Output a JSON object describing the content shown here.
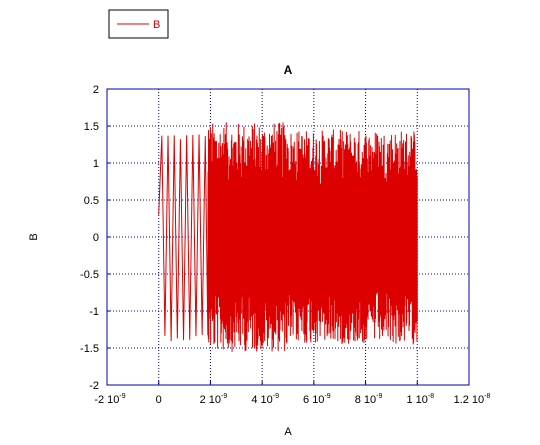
{
  "chart_data": {
    "type": "line",
    "title": "A",
    "xlabel": "A",
    "ylabel": "B",
    "xlim": [
      -2e-09,
      1.2e-08
    ],
    "ylim": [
      -2,
      2
    ],
    "grid": true,
    "legend_position": "top-left",
    "x_ticks": [
      {
        "base": "-2 10",
        "exp": "-9"
      },
      {
        "base": "0",
        "exp": ""
      },
      {
        "base": "2 10",
        "exp": "-9"
      },
      {
        "base": "4 10",
        "exp": "-9"
      },
      {
        "base": "6 10",
        "exp": "-9"
      },
      {
        "base": "8 10",
        "exp": "-9"
      },
      {
        "base": "1 10",
        "exp": "-8"
      },
      {
        "base": "1.2 10",
        "exp": "-8"
      }
    ],
    "y_ticks": [
      "2",
      "1.5",
      "1",
      "0.5",
      "0",
      "-0.5",
      "-1",
      "-1.5",
      "-2"
    ],
    "series": [
      {
        "name": "B",
        "color": "#dd0000",
        "x_start": 0,
        "x_end": 1e-08,
        "segments": [
          {
            "x_from": 0,
            "x_to": 1.9e-09,
            "period": 2.4e-10,
            "amp_min": 1.3,
            "amp_max": 1.4
          },
          {
            "x_from": 1.9e-09,
            "x_to": 5e-09,
            "period": 1.8e-11,
            "amp_min": 0.7,
            "amp_max": 1.55
          },
          {
            "x_from": 5e-09,
            "x_to": 1e-08,
            "period": 1.8e-11,
            "amp_min": 0.7,
            "amp_max": 1.45
          }
        ]
      }
    ]
  },
  "colors": {
    "frame": "#0000aa",
    "grid": "#0000aa",
    "series": "#dd0000"
  }
}
